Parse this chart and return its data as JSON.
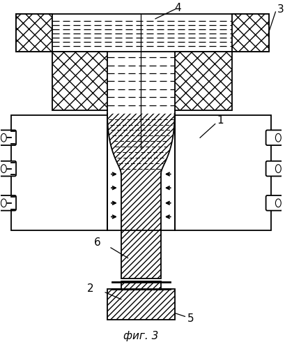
{
  "title": "фиг. 3",
  "background": "#ffffff",
  "lc": "#000000",
  "figsize": [
    4.09,
    5.0
  ],
  "dpi": 100
}
